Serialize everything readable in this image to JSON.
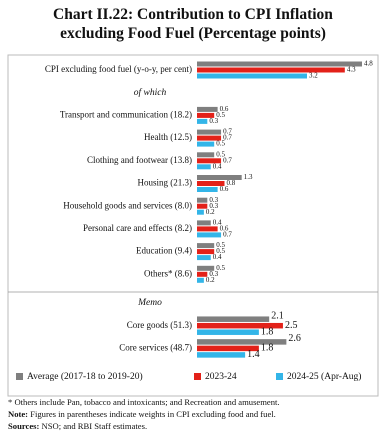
{
  "chart_data": {
    "type": "bar",
    "orientation": "horizontal",
    "title": "Chart II.22: Contribution to CPI Inflation excluding Food Fuel (Percentage points)",
    "categories": [
      "CPI excluding food fuel (y-o-y, per cent)",
      "of which",
      "Transport and communication (18.2)",
      "Health (12.5)",
      "Clothing and footwear (13.8)",
      "Housing (21.3)",
      "Household goods and services (8.0)",
      "Personal care and effects (8.2)",
      "Education (9.4)",
      "Others* (8.6)",
      "Memo",
      "Core goods (51.3)",
      "Core services (48.7)"
    ],
    "series": [
      {
        "name": "Average (2017-18 to 2019-20)",
        "color": "#7f7f7f",
        "values": [
          4.8,
          null,
          0.6,
          0.7,
          0.5,
          1.3,
          0.3,
          0.4,
          0.5,
          0.5,
          null,
          2.1,
          2.6
        ]
      },
      {
        "name": "2023-24",
        "color": "#e32119",
        "values": [
          4.3,
          null,
          0.5,
          0.7,
          0.7,
          0.8,
          0.3,
          0.6,
          0.5,
          0.3,
          null,
          2.5,
          1.8
        ]
      },
      {
        "name": "2024-25 (Apr-Aug)",
        "color": "#33b5e8",
        "values": [
          3.2,
          null,
          0.3,
          0.5,
          0.4,
          0.6,
          0.2,
          0.7,
          0.4,
          0.2,
          null,
          1.8,
          1.4
        ]
      }
    ],
    "legend": "bottom",
    "footnotes": [
      {
        "text": "* Others include Pan, tobacco and intoxicants; and Recreation and amusement."
      },
      {
        "label": "Note:",
        "text": "Figures in parentheses indicate weights in CPI excluding food and fuel."
      },
      {
        "label": "Sources:",
        "text": "NSO; and RBI Staff estimates."
      }
    ]
  }
}
